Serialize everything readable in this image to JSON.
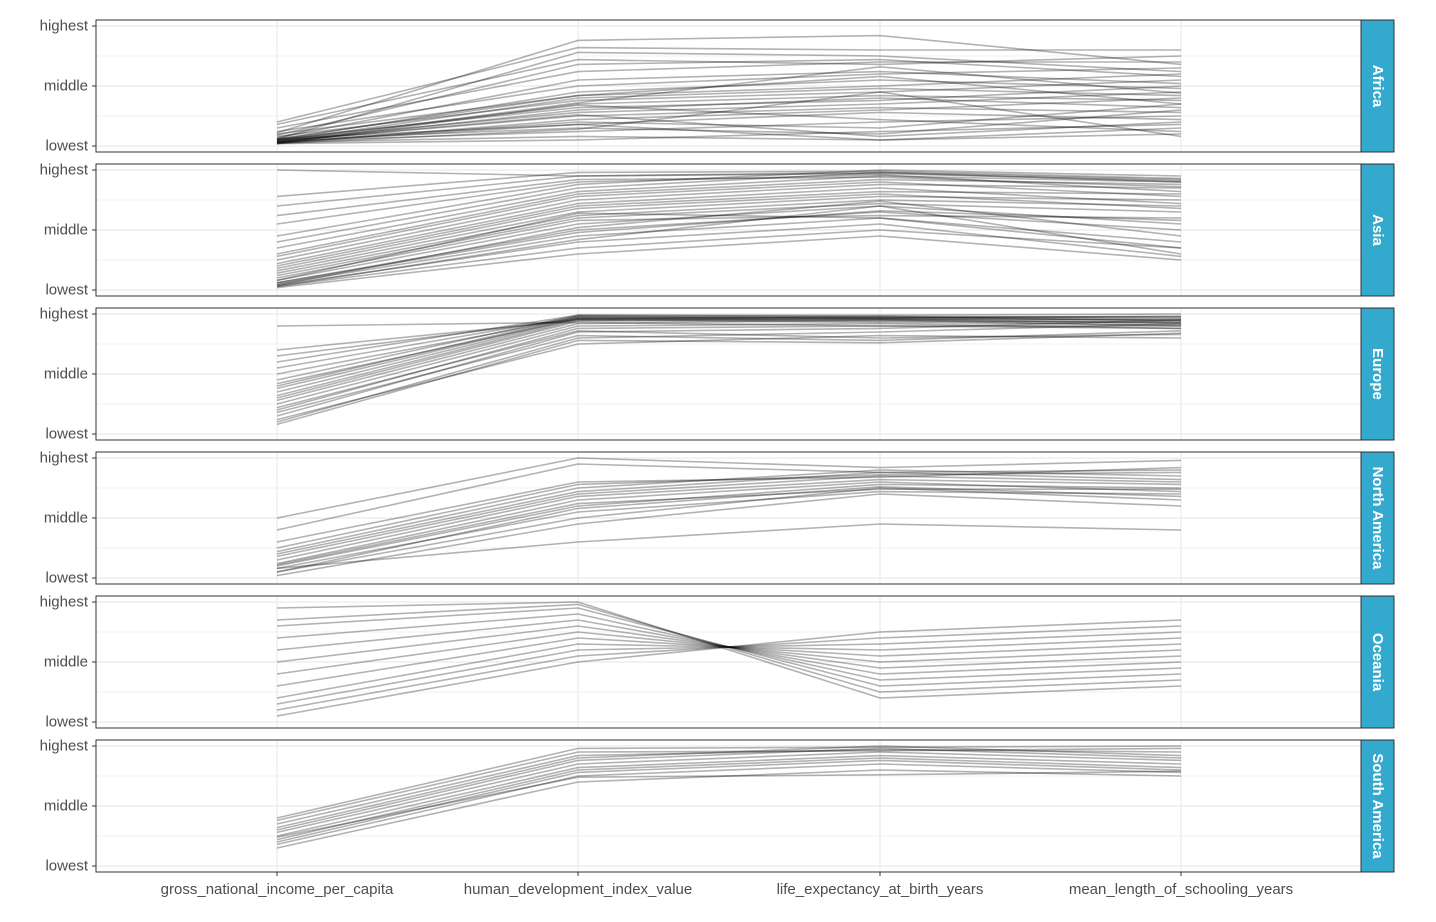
{
  "chart_data": {
    "type": "line",
    "title": "",
    "xlabel": "",
    "ylabel": "",
    "categories": [
      "gross_national_income_per_capita",
      "human_development_index_value",
      "life_expectancy_at_birth_years",
      "mean_length_of_schooling_years"
    ],
    "y_tick_labels": [
      "lowest",
      "middle",
      "highest"
    ],
    "ylim": [
      0,
      1
    ],
    "grid": true,
    "strip_color": "#33A9CE",
    "line_color": "#000000",
    "line_opacity": 0.3,
    "panels": [
      {
        "name": "Africa",
        "series": [
          {
            "values": [
              0.02,
              0.05,
              0.12,
              0.18
            ]
          },
          {
            "values": [
              0.03,
              0.08,
              0.05,
              0.1
            ]
          },
          {
            "values": [
              0.04,
              0.12,
              0.2,
              0.25
            ]
          },
          {
            "values": [
              0.05,
              0.15,
              0.1,
              0.3
            ]
          },
          {
            "values": [
              0.06,
              0.18,
              0.28,
              0.22
            ]
          },
          {
            "values": [
              0.03,
              0.2,
              0.15,
              0.35
            ]
          },
          {
            "values": [
              0.02,
              0.22,
              0.3,
              0.4
            ]
          },
          {
            "values": [
              0.04,
              0.25,
              0.32,
              0.28
            ]
          },
          {
            "values": [
              0.05,
              0.28,
              0.35,
              0.45
            ]
          },
          {
            "values": [
              0.03,
              0.3,
              0.4,
              0.32
            ]
          },
          {
            "values": [
              0.06,
              0.32,
              0.38,
              0.5
            ]
          },
          {
            "values": [
              0.02,
              0.35,
              0.42,
              0.38
            ]
          },
          {
            "values": [
              0.08,
              0.38,
              0.45,
              0.55
            ]
          },
          {
            "values": [
              0.04,
              0.4,
              0.48,
              0.42
            ]
          },
          {
            "values": [
              0.1,
              0.42,
              0.5,
              0.6
            ]
          },
          {
            "values": [
              0.05,
              0.45,
              0.55,
              0.48
            ]
          },
          {
            "values": [
              0.12,
              0.5,
              0.6,
              0.65
            ]
          },
          {
            "values": [
              0.07,
              0.55,
              0.62,
              0.52
            ]
          },
          {
            "values": [
              0.15,
              0.62,
              0.7,
              0.7
            ]
          },
          {
            "values": [
              0.09,
              0.68,
              0.72,
              0.58
            ]
          },
          {
            "values": [
              0.18,
              0.72,
              0.68,
              0.75
            ]
          },
          {
            "values": [
              0.06,
              0.78,
              0.75,
              0.62
            ]
          },
          {
            "values": [
              0.2,
              0.82,
              0.8,
              0.8
            ]
          },
          {
            "values": [
              0.11,
              0.88,
              0.92,
              0.68
            ]
          },
          {
            "values": [
              0.03,
              0.18,
              0.05,
              0.15
            ]
          },
          {
            "values": [
              0.04,
              0.26,
              0.08,
              0.2
            ]
          },
          {
            "values": [
              0.05,
              0.34,
              0.22,
              0.12
            ]
          },
          {
            "values": [
              0.02,
              0.14,
              0.45,
              0.08
            ]
          },
          {
            "values": [
              0.06,
              0.42,
              0.58,
              0.35
            ]
          },
          {
            "values": [
              0.03,
              0.36,
              0.66,
              0.44
            ]
          }
        ]
      },
      {
        "name": "Asia",
        "series": [
          {
            "values": [
              0.02,
              0.3,
              0.45,
              0.25
            ]
          },
          {
            "values": [
              0.03,
              0.35,
              0.5,
              0.35
            ]
          },
          {
            "values": [
              0.04,
              0.4,
              0.55,
              0.28
            ]
          },
          {
            "values": [
              0.05,
              0.45,
              0.6,
              0.4
            ]
          },
          {
            "values": [
              0.06,
              0.5,
              0.65,
              0.5
            ]
          },
          {
            "values": [
              0.08,
              0.55,
              0.7,
              0.55
            ]
          },
          {
            "values": [
              0.1,
              0.58,
              0.62,
              0.6
            ]
          },
          {
            "values": [
              0.12,
              0.6,
              0.72,
              0.65
            ]
          },
          {
            "values": [
              0.14,
              0.62,
              0.75,
              0.7
            ]
          },
          {
            "values": [
              0.16,
              0.65,
              0.78,
              0.75
            ]
          },
          {
            "values": [
              0.18,
              0.68,
              0.8,
              0.68
            ]
          },
          {
            "values": [
              0.2,
              0.7,
              0.82,
              0.8
            ]
          },
          {
            "values": [
              0.22,
              0.72,
              0.85,
              0.72
            ]
          },
          {
            "values": [
              0.25,
              0.75,
              0.88,
              0.85
            ]
          },
          {
            "values": [
              0.28,
              0.78,
              0.9,
              0.78
            ]
          },
          {
            "values": [
              0.3,
              0.8,
              0.92,
              0.88
            ]
          },
          {
            "values": [
              0.35,
              0.82,
              0.95,
              0.9
            ]
          },
          {
            "values": [
              0.4,
              0.85,
              0.98,
              0.92
            ]
          },
          {
            "values": [
              0.45,
              0.88,
              1.0,
              0.95
            ]
          },
          {
            "values": [
              0.55,
              0.9,
              0.96,
              0.82
            ]
          },
          {
            "values": [
              0.62,
              0.92,
              0.94,
              0.86
            ]
          },
          {
            "values": [
              0.7,
              0.95,
              0.98,
              0.9
            ]
          },
          {
            "values": [
              0.78,
              0.98,
              0.99,
              0.93
            ]
          },
          {
            "values": [
              1.0,
              0.95,
              0.97,
              0.91
            ]
          },
          {
            "values": [
              0.03,
              0.42,
              0.7,
              0.3
            ]
          },
          {
            "values": [
              0.04,
              0.52,
              0.74,
              0.45
            ]
          },
          {
            "values": [
              0.06,
              0.48,
              0.66,
              0.58
            ]
          },
          {
            "values": [
              0.08,
              0.64,
              0.6,
              0.35
            ]
          }
        ]
      },
      {
        "name": "Europe",
        "series": [
          {
            "values": [
              0.1,
              0.8,
              0.85,
              0.92
            ]
          },
          {
            "values": [
              0.15,
              0.85,
              0.88,
              0.95
            ]
          },
          {
            "values": [
              0.2,
              0.88,
              0.9,
              0.9
            ]
          },
          {
            "values": [
              0.25,
              0.9,
              0.92,
              0.88
            ]
          },
          {
            "values": [
              0.28,
              0.92,
              0.95,
              0.93
            ]
          },
          {
            "values": [
              0.3,
              0.94,
              0.96,
              0.95
            ]
          },
          {
            "values": [
              0.32,
              0.95,
              0.97,
              0.98
            ]
          },
          {
            "values": [
              0.35,
              0.96,
              0.98,
              0.94
            ]
          },
          {
            "values": [
              0.38,
              0.97,
              0.96,
              0.92
            ]
          },
          {
            "values": [
              0.4,
              0.98,
              0.97,
              0.96
            ]
          },
          {
            "values": [
              0.42,
              0.96,
              0.95,
              0.9
            ]
          },
          {
            "values": [
              0.45,
              0.99,
              0.98,
              0.97
            ]
          },
          {
            "values": [
              0.5,
              0.97,
              0.96,
              0.95
            ]
          },
          {
            "values": [
              0.55,
              0.98,
              0.97,
              0.98
            ]
          },
          {
            "values": [
              0.6,
              0.99,
              0.99,
              1.0
            ]
          },
          {
            "values": [
              0.65,
              0.96,
              0.94,
              0.93
            ]
          },
          {
            "values": [
              0.7,
              0.95,
              0.93,
              0.91
            ]
          },
          {
            "values": [
              0.9,
              0.93,
              0.9,
              0.88
            ]
          },
          {
            "values": [
              0.22,
              0.86,
              0.8,
              0.83
            ]
          },
          {
            "values": [
              0.18,
              0.82,
              0.78,
              0.86
            ]
          },
          {
            "values": [
              0.12,
              0.75,
              0.82,
              0.8
            ]
          },
          {
            "values": [
              0.08,
              0.78,
              0.76,
              0.84
            ]
          }
        ]
      },
      {
        "name": "North America",
        "series": [
          {
            "values": [
              0.02,
              0.45,
              0.7,
              0.6
            ]
          },
          {
            "values": [
              0.05,
              0.5,
              0.75,
              0.65
            ]
          },
          {
            "values": [
              0.08,
              0.55,
              0.72,
              0.7
            ]
          },
          {
            "values": [
              0.1,
              0.6,
              0.78,
              0.75
            ]
          },
          {
            "values": [
              0.12,
              0.65,
              0.8,
              0.72
            ]
          },
          {
            "values": [
              0.15,
              0.68,
              0.82,
              0.78
            ]
          },
          {
            "values": [
              0.18,
              0.7,
              0.85,
              0.8
            ]
          },
          {
            "values": [
              0.2,
              0.72,
              0.88,
              0.82
            ]
          },
          {
            "values": [
              0.22,
              0.75,
              0.9,
              0.85
            ]
          },
          {
            "values": [
              0.25,
              0.78,
              0.86,
              0.88
            ]
          },
          {
            "values": [
              0.3,
              0.8,
              0.84,
              0.92
            ]
          },
          {
            "values": [
              0.4,
              0.95,
              0.88,
              0.9
            ]
          },
          {
            "values": [
              0.5,
              1.0,
              0.92,
              0.98
            ]
          },
          {
            "values": [
              0.08,
              0.3,
              0.45,
              0.4
            ]
          },
          {
            "values": [
              0.05,
              0.58,
              0.76,
              0.68
            ]
          },
          {
            "values": [
              0.11,
              0.62,
              0.74,
              0.74
            ]
          }
        ]
      },
      {
        "name": "Oceania",
        "series": [
          {
            "values": [
              0.05,
              0.5,
              0.75,
              0.85
            ]
          },
          {
            "values": [
              0.1,
              0.55,
              0.7,
              0.8
            ]
          },
          {
            "values": [
              0.15,
              0.6,
              0.65,
              0.75
            ]
          },
          {
            "values": [
              0.2,
              0.65,
              0.6,
              0.7
            ]
          },
          {
            "values": [
              0.3,
              0.7,
              0.55,
              0.65
            ]
          },
          {
            "values": [
              0.4,
              0.75,
              0.5,
              0.6
            ]
          },
          {
            "values": [
              0.5,
              0.8,
              0.45,
              0.55
            ]
          },
          {
            "values": [
              0.6,
              0.85,
              0.4,
              0.5
            ]
          },
          {
            "values": [
              0.7,
              0.9,
              0.35,
              0.45
            ]
          },
          {
            "values": [
              0.8,
              0.95,
              0.3,
              0.4
            ]
          },
          {
            "values": [
              0.85,
              0.98,
              0.25,
              0.35
            ]
          },
          {
            "values": [
              0.95,
              1.0,
              0.2,
              0.3
            ]
          }
        ]
      },
      {
        "name": "South America",
        "series": [
          {
            "values": [
              0.15,
              0.7,
              0.8,
              0.75
            ]
          },
          {
            "values": [
              0.18,
              0.75,
              0.85,
              0.78
            ]
          },
          {
            "values": [
              0.2,
              0.78,
              0.88,
              0.8
            ]
          },
          {
            "values": [
              0.22,
              0.8,
              0.9,
              0.82
            ]
          },
          {
            "values": [
              0.25,
              0.82,
              0.92,
              0.85
            ]
          },
          {
            "values": [
              0.28,
              0.85,
              0.95,
              0.88
            ]
          },
          {
            "values": [
              0.3,
              0.88,
              0.98,
              0.9
            ]
          },
          {
            "values": [
              0.32,
              0.9,
              1.0,
              0.92
            ]
          },
          {
            "values": [
              0.35,
              0.92,
              0.97,
              0.95
            ]
          },
          {
            "values": [
              0.38,
              0.95,
              0.96,
              0.98
            ]
          },
          {
            "values": [
              0.4,
              0.98,
              0.99,
              1.0
            ]
          },
          {
            "values": [
              0.24,
              0.74,
              0.76,
              0.79
            ]
          }
        ]
      }
    ]
  }
}
